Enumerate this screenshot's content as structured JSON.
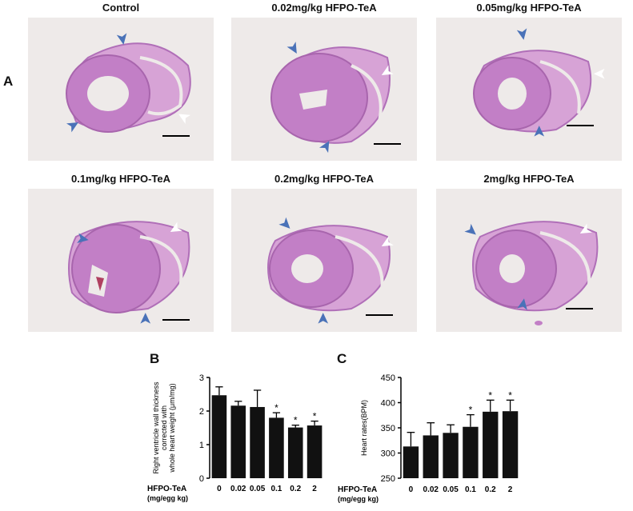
{
  "panel_labels": {
    "a": "A",
    "b": "B",
    "c": "C"
  },
  "histology": {
    "titles": [
      "Control",
      "0.02mg/kg HFPO-TeA",
      "0.05mg/kg HFPO-TeA",
      "0.1mg/kg HFPO-TeA",
      "0.2mg/kg HFPO-TeA",
      "2mg/kg HFPO-TeA"
    ],
    "stain_color": "#c27fc6",
    "blue_arrow_color": "#4a72b8",
    "white_arrow_color": "#ffffff"
  },
  "chart_data": [
    {
      "type": "bar",
      "panel": "B",
      "ylabel": "Right ventricle wall thickness corrected with whole heart weight (μm/mg)",
      "ylabel_lines": [
        "Right ventricle wall thickness",
        "corrected with",
        "whole heart weight (μm/mg)"
      ],
      "xlabel_lines": [
        "HFPO-TeA",
        "(mg/egg kg)"
      ],
      "categories": [
        "0",
        "0.02",
        "0.05",
        "0.1",
        "0.2",
        "2"
      ],
      "values": [
        2.47,
        2.16,
        2.12,
        1.8,
        1.51,
        1.57
      ],
      "errors": [
        0.25,
        0.13,
        0.5,
        0.15,
        0.07,
        0.13
      ],
      "significance": [
        "",
        "",
        "",
        "*",
        "*",
        "*"
      ],
      "ylim": [
        0,
        3
      ],
      "yticks": [
        "0",
        "1",
        "2",
        "3"
      ],
      "bar_color": "#111111"
    },
    {
      "type": "bar",
      "panel": "C",
      "ylabel": "Heart rates(BPM)",
      "ylabel_lines": [
        "Heart rates(BPM)"
      ],
      "xlabel_lines": [
        "HFPO-TeA",
        "(mg/egg kg)"
      ],
      "categories": [
        "0",
        "0.02",
        "0.05",
        "0.1",
        "0.2",
        "2"
      ],
      "values": [
        313,
        335,
        340,
        352,
        382,
        383
      ],
      "errors": [
        28,
        25,
        16,
        24,
        23,
        22
      ],
      "significance": [
        "",
        "",
        "",
        "*",
        "*",
        "*"
      ],
      "ylim": [
        250,
        450
      ],
      "yticks": [
        "250",
        "300",
        "350",
        "400",
        "450"
      ],
      "bar_color": "#111111"
    }
  ]
}
